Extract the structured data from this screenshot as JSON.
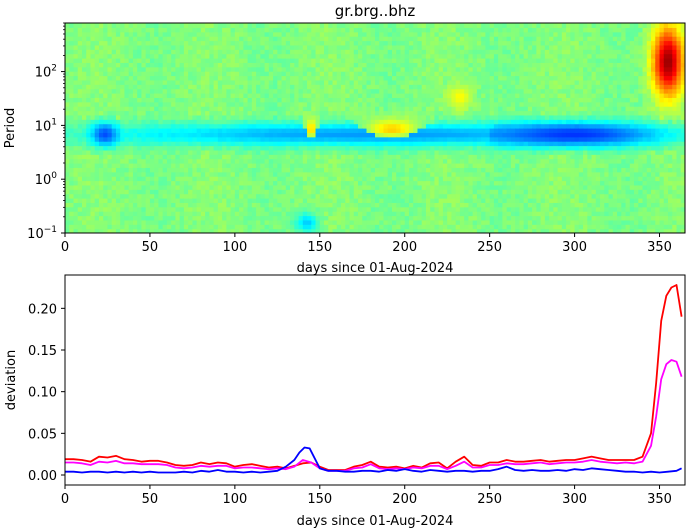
{
  "figure": {
    "title": "gr.brg..bhz"
  },
  "chart_data": [
    {
      "type": "heatmap",
      "title": "gr.brg..bhz",
      "xlabel": "days since 01-Aug-2024",
      "ylabel": "Period",
      "xlim": [
        0,
        365
      ],
      "ylim": [
        0.1,
        800
      ],
      "yscale": "log",
      "x_ticks": [
        0,
        50,
        100,
        150,
        200,
        250,
        300,
        350
      ],
      "y_ticks": [
        {
          "value": 0.1,
          "label": "10",
          "exp": "−1"
        },
        {
          "value": 1,
          "label": "10",
          "exp": "0"
        },
        {
          "value": 10,
          "label": "10",
          "exp": "1"
        },
        {
          "value": 100,
          "label": "10",
          "exp": "2"
        }
      ],
      "colormap": "jet",
      "value_range": [
        -1,
        1
      ],
      "description_of_features": [
        {
          "days": [
            0,
            365
          ],
          "period": [
            4,
            12
          ],
          "level": -0.45
        },
        {
          "days": [
            15,
            32
          ],
          "period": [
            4,
            12
          ],
          "level": -0.6
        },
        {
          "days": [
            250,
            350
          ],
          "period": [
            4,
            12
          ],
          "level": -0.65
        },
        {
          "days": [
            135,
            150
          ],
          "period": [
            0.1,
            0.25
          ],
          "level": -0.35
        },
        {
          "days": [
            170,
            215
          ],
          "period": [
            5,
            15
          ],
          "level": 0.35
        },
        {
          "days": [
            140,
            150
          ],
          "period": [
            5,
            15
          ],
          "level": 0.35
        },
        {
          "days": [
            225,
            240
          ],
          "period": [
            20,
            60
          ],
          "level": 0.25
        },
        {
          "days": [
            345,
            365
          ],
          "period": [
            30,
            800
          ],
          "level": 0.95
        }
      ]
    },
    {
      "type": "line",
      "xlabel": "days since 01-Aug-2024",
      "ylabel": "deviation",
      "xlim": [
        0,
        365
      ],
      "ylim": [
        -0.012,
        0.24
      ],
      "x_ticks": [
        0,
        50,
        100,
        150,
        200,
        250,
        300,
        350
      ],
      "y_ticks": [
        0.0,
        0.05,
        0.1,
        0.15,
        0.2
      ],
      "y_tick_labels": [
        "0.00",
        "0.05",
        "0.10",
        "0.15",
        "0.20"
      ],
      "grid": false,
      "series": [
        {
          "color": "#ff0000",
          "x": [
            0,
            5,
            10,
            15,
            20,
            25,
            30,
            35,
            40,
            45,
            50,
            55,
            60,
            65,
            70,
            75,
            80,
            85,
            90,
            95,
            100,
            105,
            110,
            115,
            120,
            125,
            130,
            135,
            140,
            145,
            150,
            155,
            160,
            165,
            170,
            175,
            180,
            185,
            190,
            195,
            200,
            205,
            210,
            215,
            220,
            225,
            230,
            235,
            240,
            245,
            250,
            255,
            260,
            265,
            270,
            275,
            280,
            285,
            290,
            295,
            300,
            305,
            310,
            315,
            320,
            325,
            330,
            335,
            340,
            345,
            348,
            351,
            354,
            357,
            360,
            363
          ],
          "values": [
            0.019,
            0.019,
            0.018,
            0.016,
            0.022,
            0.021,
            0.023,
            0.019,
            0.018,
            0.016,
            0.017,
            0.017,
            0.015,
            0.012,
            0.011,
            0.012,
            0.015,
            0.013,
            0.015,
            0.014,
            0.01,
            0.012,
            0.013,
            0.011,
            0.009,
            0.01,
            0.008,
            0.011,
            0.014,
            0.015,
            0.01,
            0.006,
            0.006,
            0.006,
            0.01,
            0.012,
            0.016,
            0.01,
            0.009,
            0.01,
            0.008,
            0.011,
            0.009,
            0.014,
            0.015,
            0.008,
            0.016,
            0.022,
            0.012,
            0.011,
            0.015,
            0.015,
            0.018,
            0.016,
            0.016,
            0.017,
            0.018,
            0.016,
            0.017,
            0.018,
            0.018,
            0.02,
            0.022,
            0.02,
            0.018,
            0.018,
            0.018,
            0.018,
            0.022,
            0.05,
            0.11,
            0.185,
            0.215,
            0.225,
            0.228,
            0.19
          ]
        },
        {
          "color": "#ff00ff",
          "x": [
            0,
            5,
            10,
            15,
            20,
            25,
            30,
            35,
            40,
            45,
            50,
            55,
            60,
            65,
            70,
            75,
            80,
            85,
            90,
            95,
            100,
            105,
            110,
            115,
            120,
            125,
            130,
            135,
            140,
            145,
            150,
            155,
            160,
            165,
            170,
            175,
            180,
            185,
            190,
            195,
            200,
            205,
            210,
            215,
            220,
            225,
            230,
            235,
            240,
            245,
            250,
            255,
            260,
            265,
            270,
            275,
            280,
            285,
            290,
            295,
            300,
            305,
            310,
            315,
            320,
            325,
            330,
            335,
            340,
            345,
            348,
            351,
            354,
            357,
            360,
            363
          ],
          "values": [
            0.015,
            0.015,
            0.014,
            0.012,
            0.016,
            0.015,
            0.017,
            0.014,
            0.014,
            0.013,
            0.013,
            0.013,
            0.012,
            0.009,
            0.008,
            0.009,
            0.011,
            0.01,
            0.011,
            0.011,
            0.008,
            0.009,
            0.009,
            0.008,
            0.007,
            0.008,
            0.007,
            0.01,
            0.018,
            0.015,
            0.008,
            0.005,
            0.005,
            0.005,
            0.008,
            0.009,
            0.013,
            0.008,
            0.007,
            0.008,
            0.007,
            0.009,
            0.008,
            0.011,
            0.011,
            0.007,
            0.011,
            0.016,
            0.009,
            0.009,
            0.012,
            0.012,
            0.014,
            0.013,
            0.013,
            0.014,
            0.015,
            0.013,
            0.014,
            0.015,
            0.015,
            0.016,
            0.018,
            0.016,
            0.015,
            0.014,
            0.015,
            0.014,
            0.016,
            0.035,
            0.07,
            0.115,
            0.133,
            0.138,
            0.136,
            0.118
          ]
        },
        {
          "color": "#0000ff",
          "x": [
            0,
            5,
            10,
            15,
            20,
            25,
            30,
            35,
            40,
            45,
            50,
            55,
            60,
            65,
            70,
            75,
            80,
            85,
            90,
            95,
            100,
            105,
            110,
            115,
            120,
            125,
            130,
            135,
            138,
            141,
            144,
            147,
            150,
            155,
            160,
            165,
            170,
            175,
            180,
            185,
            190,
            195,
            200,
            205,
            210,
            215,
            220,
            225,
            230,
            235,
            240,
            245,
            250,
            255,
            260,
            265,
            270,
            275,
            280,
            285,
            290,
            295,
            300,
            305,
            310,
            315,
            320,
            325,
            330,
            335,
            340,
            345,
            350,
            355,
            360,
            363
          ],
          "values": [
            0.004,
            0.004,
            0.003,
            0.004,
            0.004,
            0.003,
            0.004,
            0.003,
            0.004,
            0.003,
            0.004,
            0.003,
            0.003,
            0.003,
            0.004,
            0.003,
            0.005,
            0.004,
            0.006,
            0.004,
            0.004,
            0.003,
            0.004,
            0.003,
            0.004,
            0.005,
            0.01,
            0.018,
            0.027,
            0.033,
            0.032,
            0.02,
            0.008,
            0.005,
            0.005,
            0.004,
            0.004,
            0.005,
            0.005,
            0.004,
            0.006,
            0.005,
            0.007,
            0.005,
            0.004,
            0.006,
            0.005,
            0.004,
            0.005,
            0.005,
            0.004,
            0.005,
            0.005,
            0.007,
            0.01,
            0.006,
            0.005,
            0.006,
            0.005,
            0.005,
            0.006,
            0.005,
            0.007,
            0.006,
            0.008,
            0.007,
            0.006,
            0.005,
            0.004,
            0.004,
            0.003,
            0.004,
            0.003,
            0.004,
            0.005,
            0.008
          ]
        }
      ]
    }
  ]
}
